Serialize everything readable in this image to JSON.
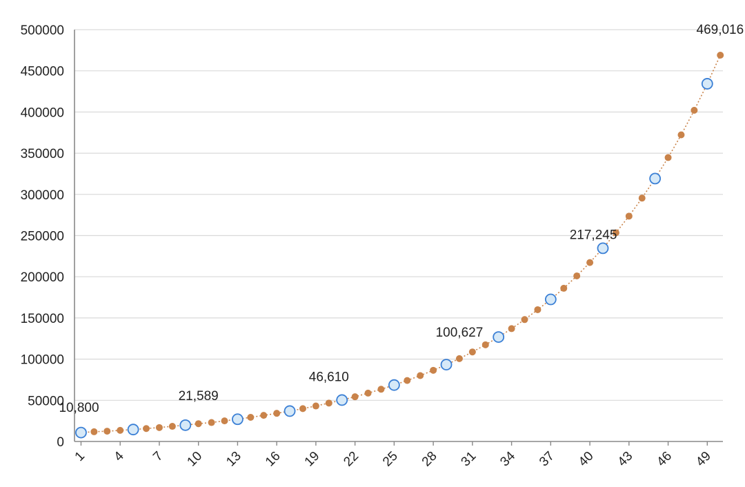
{
  "chart_data": {
    "type": "line",
    "title": "",
    "xlabel": "",
    "ylabel": "",
    "ylim": [
      0,
      500000
    ],
    "yticks": [
      "0",
      "50000",
      "100000",
      "150000",
      "200000",
      "250000",
      "300000",
      "350000",
      "400000",
      "450000",
      "500000"
    ],
    "xticks": [
      "1",
      "4",
      "7",
      "10",
      "13",
      "16",
      "19",
      "22",
      "25",
      "28",
      "31",
      "34",
      "37",
      "40",
      "43",
      "46",
      "49"
    ],
    "grid": true,
    "series": [
      {
        "color": "#c9834a",
        "line_style": "dotted",
        "x": [
          1,
          2,
          3,
          4,
          5,
          6,
          7,
          8,
          9,
          10,
          11,
          12,
          13,
          14,
          15,
          16,
          17,
          18,
          19,
          20,
          21,
          22,
          23,
          24,
          25,
          26,
          27,
          28,
          29,
          30,
          31,
          32,
          33,
          34,
          35,
          36,
          37,
          38,
          39,
          40,
          41,
          42,
          43,
          44,
          45,
          46,
          47,
          48,
          49,
          50
        ],
        "values": [
          10800,
          11800,
          12500,
          13500,
          14500,
          15700,
          16900,
          18400,
          19800,
          21589,
          23000,
          25000,
          27000,
          29300,
          31700,
          34200,
          36900,
          39900,
          43100,
          46610,
          50300,
          54300,
          58700,
          63400,
          68500,
          74000,
          80000,
          86400,
          93300,
          100627,
          108700,
          117400,
          126800,
          137000,
          148000,
          160000,
          172500,
          186000,
          201000,
          217245,
          234600,
          253400,
          273600,
          295500,
          319200,
          344700,
          372300,
          402100,
          434300,
          469016
        ],
        "labeled_points": [
          {
            "x": 1,
            "label": "10,800"
          },
          {
            "x": 10,
            "label": "21,589"
          },
          {
            "x": 20,
            "label": "46,610"
          },
          {
            "x": 30,
            "label": "100,627"
          },
          {
            "x": 40,
            "label": "217,245"
          },
          {
            "x": 50,
            "label": "469,016"
          }
        ],
        "highlighted_x": [
          1,
          5,
          9,
          13,
          17,
          21,
          25,
          29,
          33,
          37,
          41,
          45,
          49
        ],
        "marker_color": "#c9834a",
        "highlight_fill": "#d6e9f8",
        "highlight_stroke": "#3a7fd5"
      }
    ]
  }
}
